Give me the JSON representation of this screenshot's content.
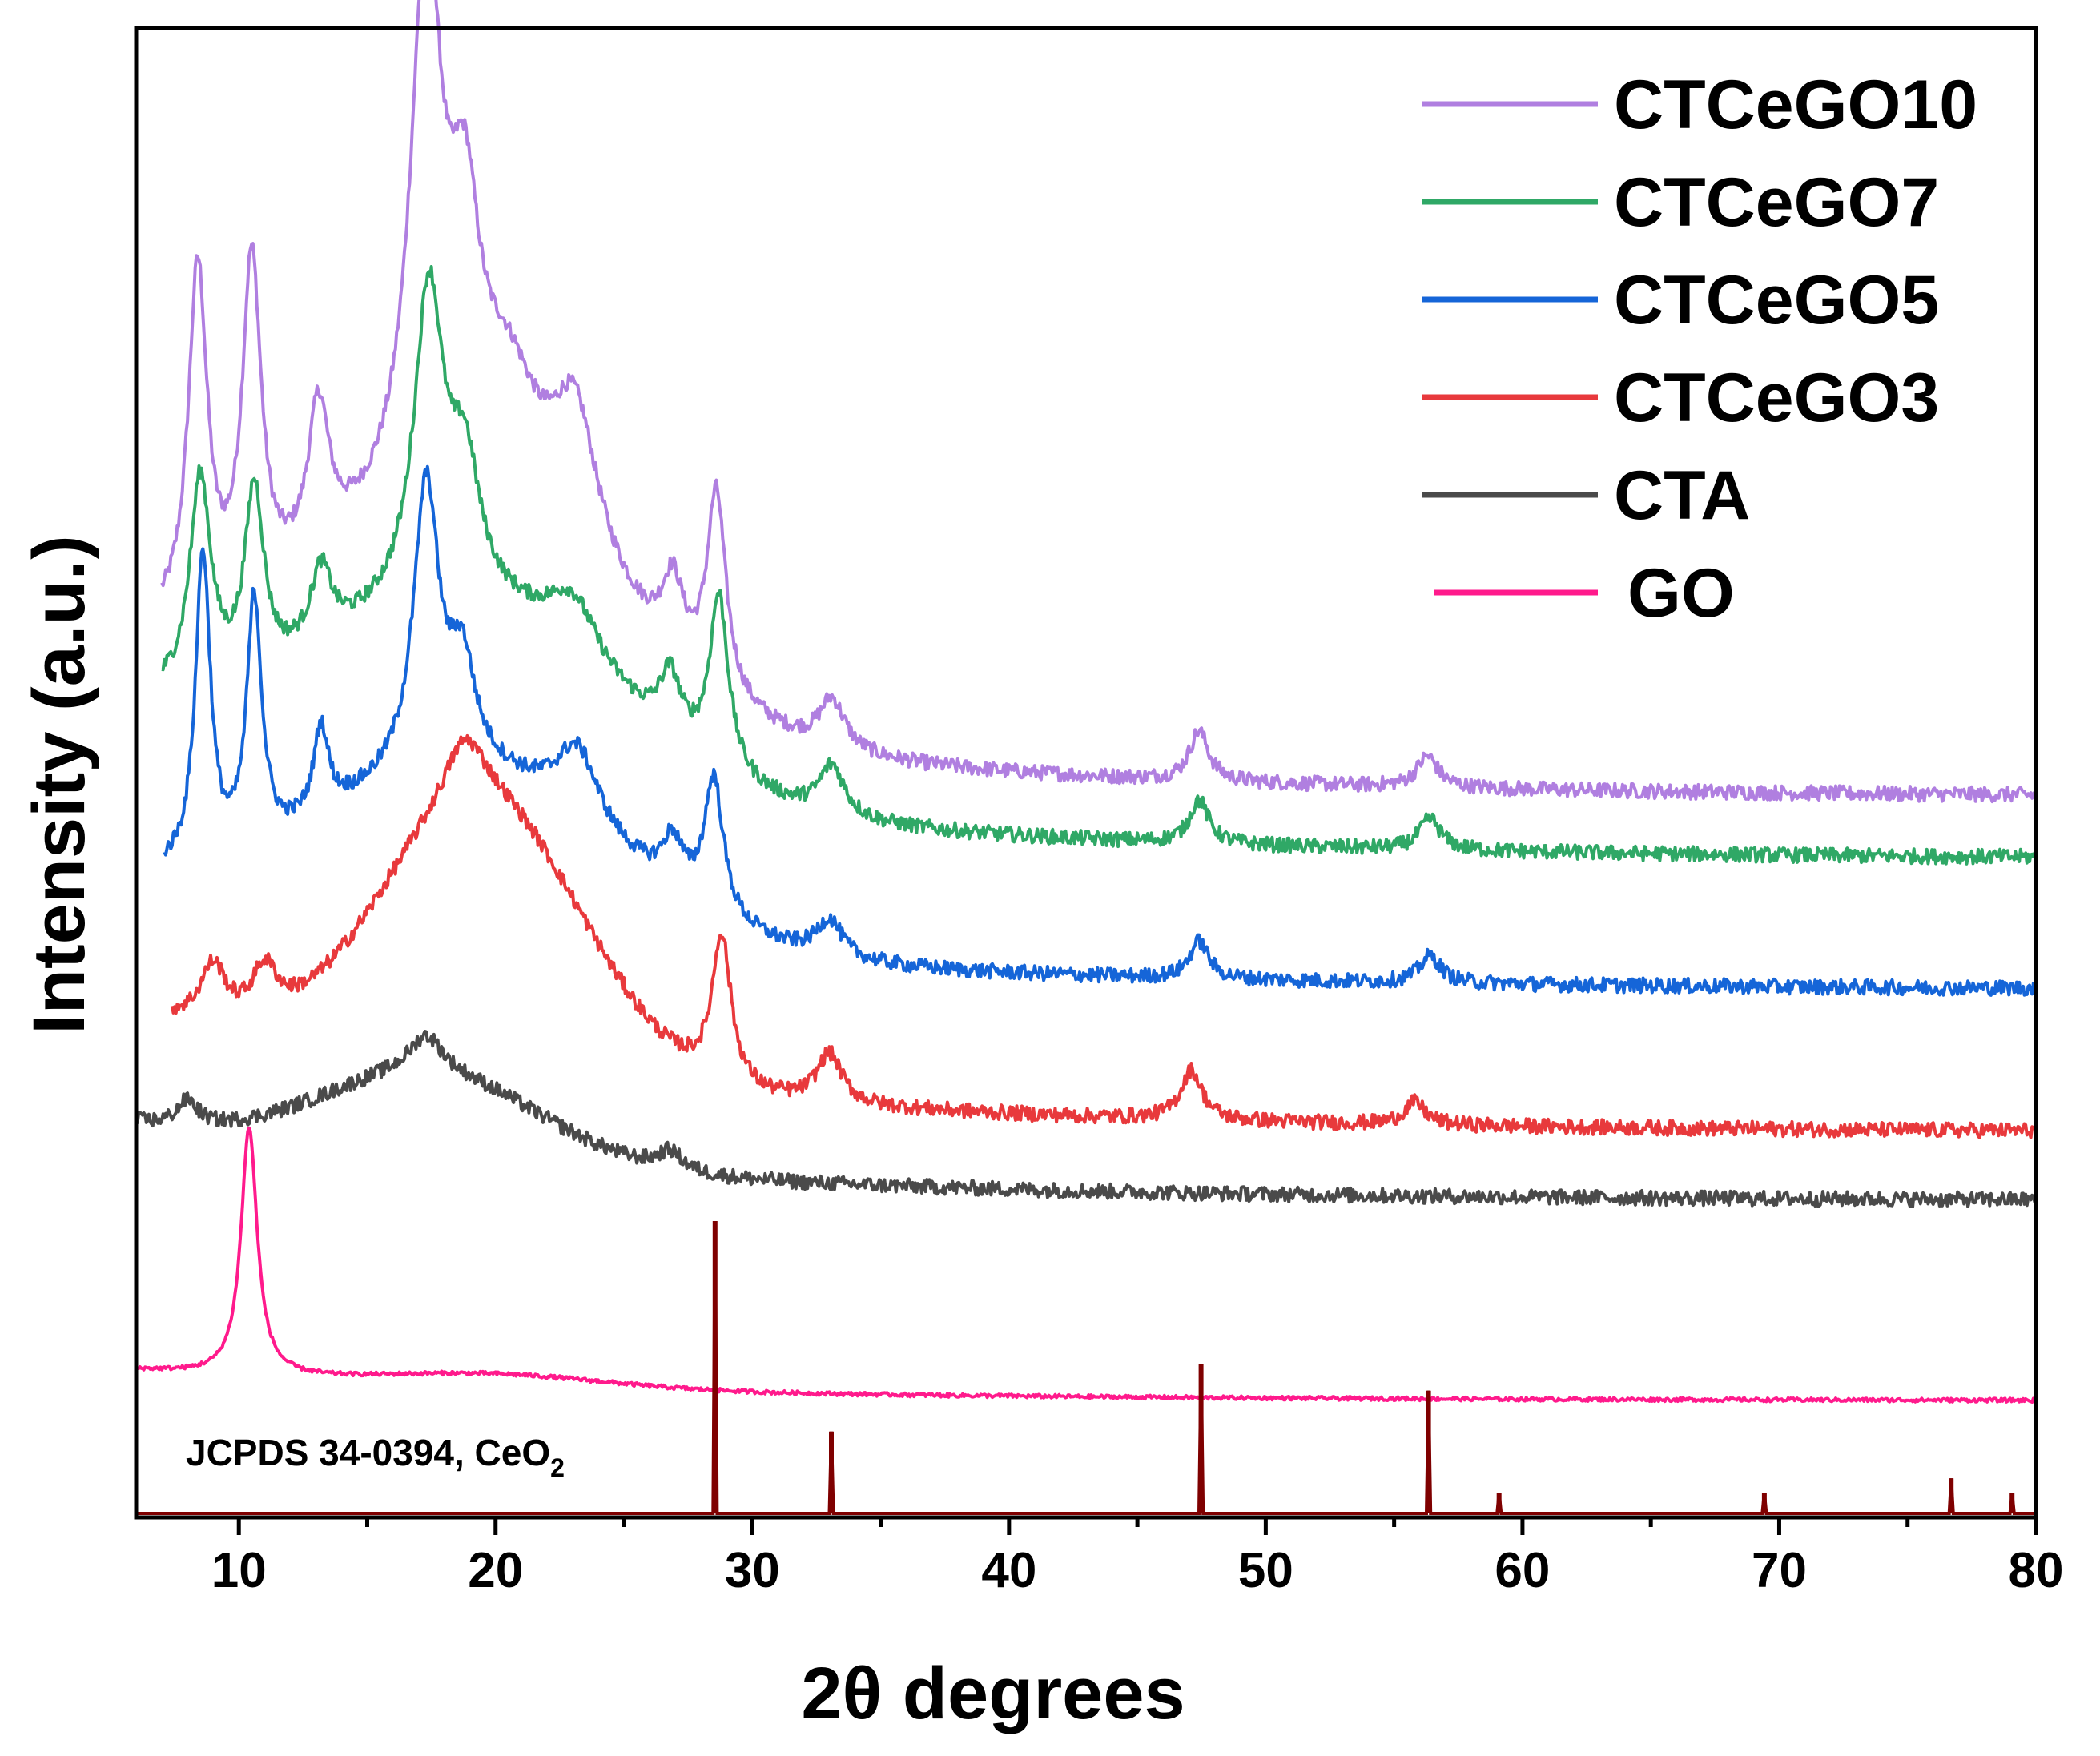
{
  "chart_data": {
    "type": "line",
    "title": "",
    "xlabel": "2θ degrees",
    "ylabel": "Intensity (a.u.)",
    "xlim": [
      6,
      80
    ],
    "ylim": [
      0,
      1.2
    ],
    "xticks": [
      10,
      20,
      30,
      40,
      50,
      60,
      70,
      80
    ],
    "grid": false,
    "legend_position": "top-right",
    "reference_label": {
      "prefix": "JCPDS 34-0394, CeO",
      "subscript": "2"
    },
    "series": [
      {
        "name": "CTCeGO10",
        "color": "#b07fe0",
        "x_start": 7.0,
        "base": 0.58,
        "peaks": [
          [
            8.4,
            0.28,
            0.45
          ],
          [
            10.5,
            0.27,
            0.45
          ],
          [
            13.1,
            0.12,
            0.5
          ],
          [
            17.3,
            0.43,
            0.75
          ],
          [
            18.8,
            0.18,
            0.7
          ],
          [
            20.5,
            0.1,
            1.5
          ],
          [
            23.1,
            0.12,
            1.1
          ],
          [
            26.9,
            0.06,
            0.5
          ],
          [
            28.6,
            0.16,
            0.45
          ],
          [
            33.1,
            0.04,
            0.6
          ],
          [
            47.4,
            0.04,
            0.45
          ],
          [
            56.3,
            0.025,
            0.5
          ]
        ],
        "hump": [
          0.16,
          19,
          8
        ],
        "decay": 0.1,
        "noise": 0.006
      },
      {
        "name": "CTCeGO7",
        "color": "#2fa866",
        "x_start": 7.0,
        "base": 0.53,
        "peaks": [
          [
            8.5,
            0.17,
            0.5
          ],
          [
            10.6,
            0.15,
            0.45
          ],
          [
            13.2,
            0.06,
            0.5
          ],
          [
            17.4,
            0.25,
            0.7
          ],
          [
            18.8,
            0.1,
            0.7
          ],
          [
            23.0,
            0.05,
            1.2
          ],
          [
            26.8,
            0.05,
            0.5
          ],
          [
            28.7,
            0.14,
            0.45
          ],
          [
            33.1,
            0.04,
            0.6
          ],
          [
            47.4,
            0.035,
            0.45
          ],
          [
            56.4,
            0.025,
            0.5
          ]
        ],
        "hump": [
          0.14,
          19,
          8
        ],
        "decay": 0.1,
        "noise": 0.006
      },
      {
        "name": "CTCeGO5",
        "color": "#1565d8",
        "x_start": 7.1,
        "base": 0.425,
        "peaks": [
          [
            8.6,
            0.25,
            0.35
          ],
          [
            10.6,
            0.2,
            0.35
          ],
          [
            13.2,
            0.07,
            0.35
          ],
          [
            17.3,
            0.23,
            0.6
          ],
          [
            18.7,
            0.08,
            0.6
          ],
          [
            23.2,
            0.06,
            1.0
          ],
          [
            26.9,
            0.04,
            0.5
          ],
          [
            28.5,
            0.11,
            0.45
          ],
          [
            33.0,
            0.03,
            0.6
          ],
          [
            47.4,
            0.03,
            0.45
          ],
          [
            56.4,
            0.022,
            0.5
          ]
        ],
        "hump": [
          0.13,
          19,
          8
        ],
        "decay": 0.07,
        "noise": 0.006
      },
      {
        "name": "CTCeGO3",
        "color": "#e8393c",
        "x_start": 7.4,
        "base": 0.31,
        "peaks": [
          [
            9.0,
            0.045,
            0.6
          ],
          [
            11.0,
            0.04,
            0.6
          ],
          [
            18.8,
            0.05,
            1.0
          ],
          [
            28.8,
            0.12,
            0.45
          ],
          [
            33.0,
            0.04,
            0.6
          ],
          [
            47.1,
            0.04,
            0.5
          ],
          [
            55.8,
            0.018,
            0.5
          ]
        ],
        "hump": [
          0.22,
          19.5,
          5.5
        ],
        "decay": 0.08,
        "noise": 0.006
      },
      {
        "name": "CTA",
        "color": "#4a4a4a",
        "x_start": 6.0,
        "base": 0.255,
        "peaks": [
          [
            8.0,
            0.02,
            0.5
          ],
          [
            17.3,
            0.03,
            0.8
          ],
          [
            26.8,
            0.015,
            0.6
          ]
        ],
        "hump": [
          0.07,
          17.5,
          6
        ],
        "decay": 0.05,
        "noise": 0.006
      },
      {
        "name": "GO",
        "color": "#ff1a8c",
        "x_start": 6.0,
        "base": 0.094,
        "peaks": [
          [
            10.4,
            0.2,
            0.38
          ]
        ],
        "hump": [
          0.01,
          20,
          6
        ],
        "decay": 0.02,
        "noise": 0.0015
      }
    ],
    "reference_pattern": {
      "name": "JCPDS 34-0394, CeO2",
      "color": "#7f0000",
      "peaks": [
        {
          "x": 28.55,
          "intensity": 1.0
        },
        {
          "x": 33.08,
          "intensity": 0.28
        },
        {
          "x": 47.48,
          "intensity": 0.51
        },
        {
          "x": 56.34,
          "intensity": 0.42
        },
        {
          "x": 59.09,
          "intensity": 0.07
        },
        {
          "x": 69.42,
          "intensity": 0.07
        },
        {
          "x": 76.7,
          "intensity": 0.12
        },
        {
          "x": 79.07,
          "intensity": 0.07
        }
      ]
    }
  }
}
